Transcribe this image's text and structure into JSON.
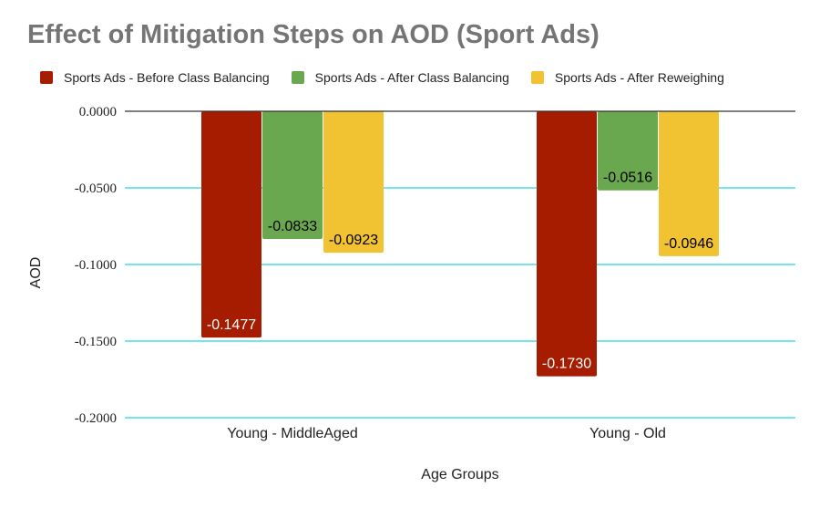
{
  "chart_data": {
    "type": "bar",
    "title": "Effect of Mitigation Steps on AOD (Sport Ads)",
    "xlabel": "Age Groups",
    "ylabel": "AOD",
    "categories": [
      "Young - MiddleAged",
      "Young - Old"
    ],
    "series": [
      {
        "name": "Sports Ads - Before Class Balancing",
        "color": "#a61c00",
        "values": [
          -0.1477,
          -0.173
        ],
        "labels": [
          "-0.1477",
          "-0.1730"
        ],
        "label_color": "#ffffff"
      },
      {
        "name": "Sports Ads - After Class Balancing",
        "color": "#6aa84f",
        "values": [
          -0.0833,
          -0.0516
        ],
        "labels": [
          "-0.0833",
          "-0.0516"
        ],
        "label_color": "#000000"
      },
      {
        "name": "Sports Ads - After Reweighing",
        "color": "#f1c232",
        "values": [
          -0.0923,
          -0.0946
        ],
        "labels": [
          "-0.0923",
          "-0.0946"
        ],
        "label_color": "#000000"
      }
    ],
    "ylim": [
      -0.2,
      0
    ],
    "yticks": [
      0,
      -0.05,
      -0.1,
      -0.15,
      -0.2
    ],
    "ytick_labels": [
      "0.0000",
      "-0.0500",
      "-0.1000",
      "-0.1500",
      "-0.2000"
    ],
    "grid": true,
    "gridline_color": "#22d3e6",
    "legend_position": "top"
  }
}
